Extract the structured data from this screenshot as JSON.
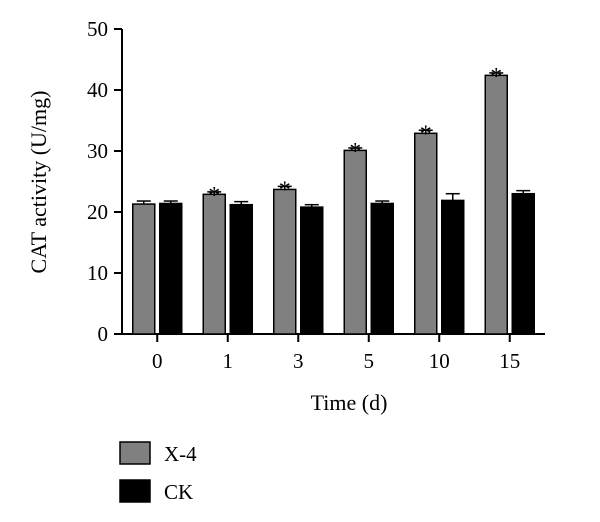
{
  "chart_data": {
    "type": "bar",
    "categories": [
      "0",
      "1",
      "3",
      "5",
      "10",
      "15"
    ],
    "xlabel": "Time (d)",
    "ylabel": "CAT activity (U/mg)",
    "ylim": [
      0,
      50
    ],
    "yticks": [
      "0",
      "10",
      "20",
      "30",
      "40",
      "50"
    ],
    "grid": false,
    "legend_position": "bottom-left",
    "series": [
      {
        "name": "X-4",
        "color": "#808080",
        "values": [
          21.3,
          22.9,
          23.7,
          30.1,
          32.9,
          42.4
        ],
        "errors": [
          0.5,
          0.4,
          0.5,
          0.4,
          0.5,
          0.4
        ],
        "significance": [
          "",
          "*",
          "*",
          "*",
          "*",
          "*"
        ]
      },
      {
        "name": "CK",
        "color": "#000000",
        "values": [
          21.4,
          21.2,
          20.8,
          21.4,
          21.9,
          23.0
        ],
        "errors": [
          0.4,
          0.5,
          0.4,
          0.4,
          1.1,
          0.5
        ],
        "significance": [
          "",
          "",
          "",
          "",
          "",
          ""
        ]
      }
    ]
  }
}
